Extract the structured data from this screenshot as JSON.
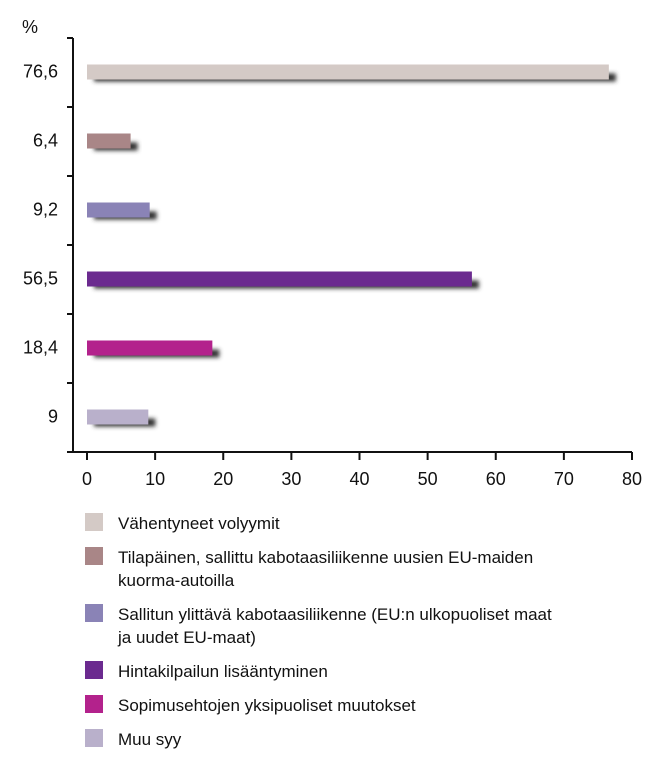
{
  "chart_data": {
    "type": "bar",
    "orientation": "horizontal",
    "axis_label": "%",
    "categories": [
      "Vähentyneet volyymit",
      "Tilapäinen, sallittu kabotaasiliikenne uusien EU-maiden kuorma-autoilla",
      "Sallitun ylittävä kabotaasiliikenne (EU:n ulkopuoliset maat ja uudet EU-maat)",
      "Hintakilpailun lisääntyminen",
      "Sopimusehtojen yksipuoliset muutokset",
      "Muu syy"
    ],
    "values": [
      76.6,
      6.4,
      9.2,
      56.5,
      18.4,
      9
    ],
    "value_labels": [
      "76,6",
      "6,4",
      "9,2",
      "56,5",
      "18,4",
      "9"
    ],
    "colors": [
      "#d4cac6",
      "#a98687",
      "#8a83b6",
      "#6b2a8f",
      "#b3228c",
      "#b9b0cb"
    ],
    "xlim": [
      0,
      80
    ],
    "xticks": [
      0,
      10,
      20,
      30,
      40,
      50,
      60,
      70,
      80
    ]
  }
}
